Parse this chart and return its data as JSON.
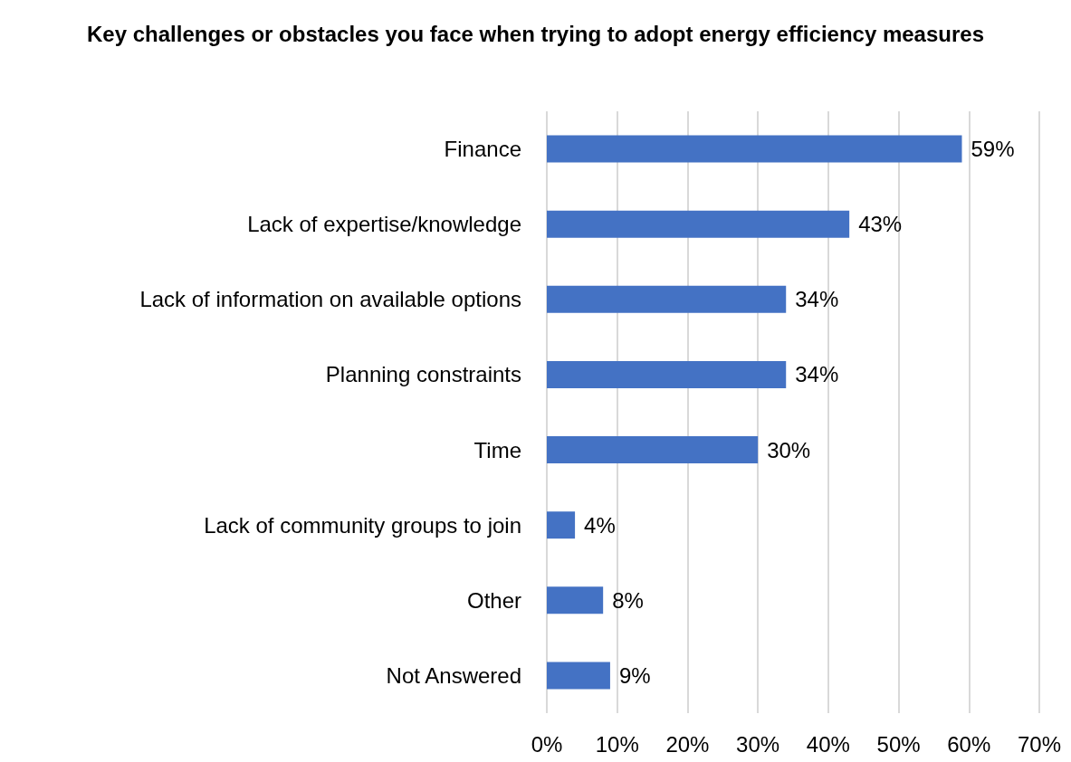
{
  "chart_data": {
    "type": "bar",
    "orientation": "horizontal",
    "title": "Key challenges or obstacles you face when trying to adopt energy efficiency measures",
    "categories": [
      "Finance",
      "Lack of expertise/knowledge",
      "Lack of information on available options",
      "Planning constraints",
      "Time",
      "Lack of community groups to join",
      "Other",
      "Not Answered"
    ],
    "values": [
      59,
      43,
      34,
      34,
      30,
      4,
      8,
      9
    ],
    "value_labels": [
      "59%",
      "43%",
      "34%",
      "34%",
      "30%",
      "4%",
      "8%",
      "9%"
    ],
    "color": "#4472c4",
    "xlim": [
      0,
      70
    ],
    "xticks": [
      {
        "value": 0,
        "label": "0%"
      },
      {
        "value": 10,
        "label": "10%"
      },
      {
        "value": 20,
        "label": "20%"
      },
      {
        "value": 30,
        "label": "30%"
      },
      {
        "value": 40,
        "label": "40%"
      },
      {
        "value": 50,
        "label": "50%"
      },
      {
        "value": 60,
        "label": "60%"
      },
      {
        "value": 70,
        "label": "70%"
      }
    ],
    "grid": "x"
  }
}
